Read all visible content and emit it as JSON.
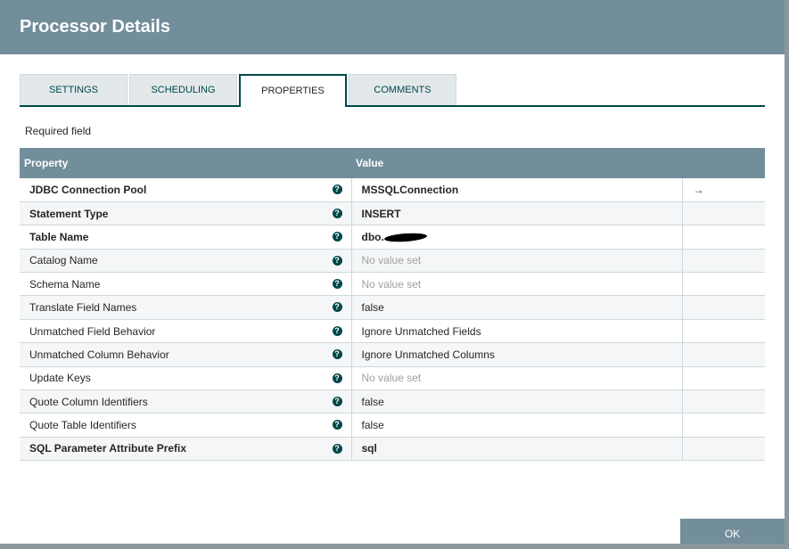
{
  "title": "Processor Details",
  "tabs": [
    {
      "label": "SETTINGS"
    },
    {
      "label": "SCHEDULING"
    },
    {
      "label": "PROPERTIES",
      "active": true
    },
    {
      "label": "COMMENTS"
    }
  ],
  "required_label": "Required field",
  "table": {
    "headers": {
      "property": "Property",
      "value": "Value"
    },
    "rows": [
      {
        "property": "JDBC Connection Pool",
        "value": "MSSQLConnection",
        "required": true,
        "action": "→"
      },
      {
        "property": "Statement Type",
        "value": "INSERT",
        "required": true
      },
      {
        "property": "Table Name",
        "value": "dbo.",
        "required": true,
        "redacted": true
      },
      {
        "property": "Catalog Name",
        "value": "No value set",
        "empty": true
      },
      {
        "property": "Schema Name",
        "value": "No value set",
        "empty": true
      },
      {
        "property": "Translate Field Names",
        "value": "false"
      },
      {
        "property": "Unmatched Field Behavior",
        "value": "Ignore Unmatched Fields"
      },
      {
        "property": "Unmatched Column Behavior",
        "value": "Ignore Unmatched Columns"
      },
      {
        "property": "Update Keys",
        "value": "No value set",
        "empty": true
      },
      {
        "property": "Quote Column Identifiers",
        "value": "false"
      },
      {
        "property": "Quote Table Identifiers",
        "value": "false"
      },
      {
        "property": "SQL Parameter Attribute Prefix",
        "value": "sql",
        "required": true
      }
    ]
  },
  "help_glyph": "?",
  "ok_label": "OK",
  "colors": {
    "header": "#728e9b",
    "accent": "#004849"
  }
}
